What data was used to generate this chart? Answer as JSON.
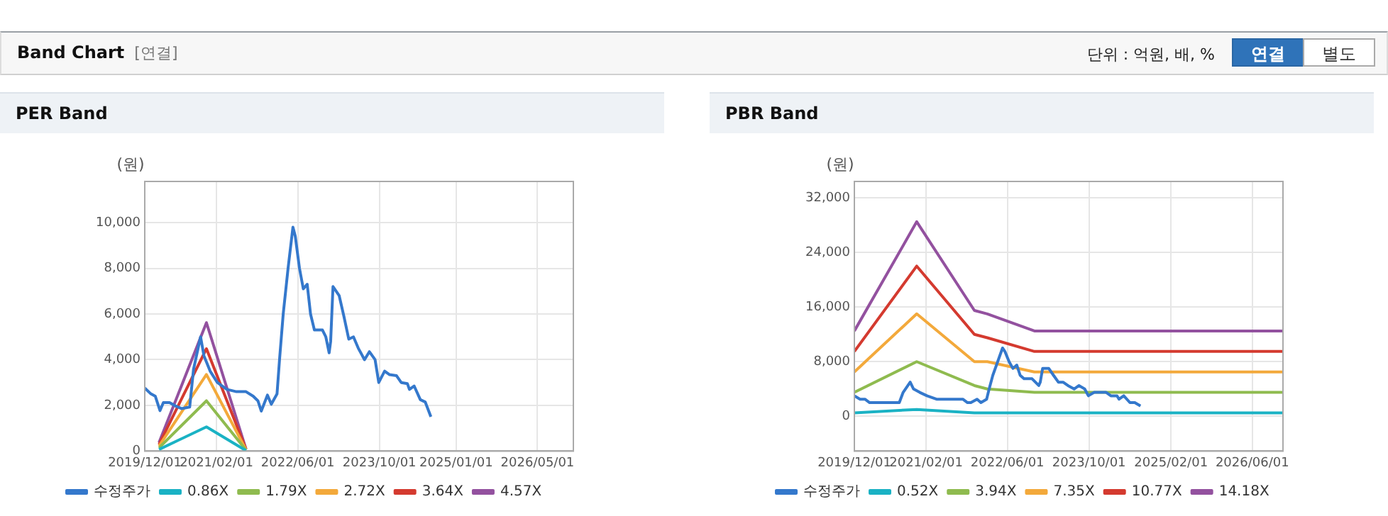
{
  "chart_data": [
    {
      "type": "other",
      "title": "Band Chart",
      "subtitle": "[연결]",
      "annotations": [
        "단위 : 억원, 배, %",
        "연결",
        "별도"
      ]
    },
    {
      "type": "line",
      "title": "PER Band",
      "ylabel": "(원)",
      "x": [
        "2019-12-01",
        "2020-01-04",
        "2020-02-02",
        "2020-03-01",
        "2020-03-21",
        "2020-04-27",
        "2020-05-31",
        "2020-07-07",
        "2020-08-25",
        "2020-09-17",
        "2020-10-29",
        "2020-11-18",
        "2020-12-25",
        "2021-02-06",
        "2021-04-04",
        "2021-05-31",
        "2021-07-27",
        "2021-09-08",
        "2021-10-06",
        "2021-10-26",
        "2021-12-02",
        "2021-12-25",
        "2022-01-28",
        "2022-02-12",
        "2022-03-06",
        "2022-04-04",
        "2022-05-03",
        "2022-05-17",
        "2022-06-11",
        "2022-07-04",
        "2022-07-27",
        "2022-08-16",
        "2022-09-08",
        "2022-10-26",
        "2022-11-15",
        "2022-12-05",
        "2022-12-14",
        "2022-12-28",
        "2023-02-03",
        "2023-03-03",
        "2023-04-01",
        "2023-04-29",
        "2023-05-28",
        "2023-07-04",
        "2023-08-02",
        "2023-09-05",
        "2023-09-27",
        "2023-11-01",
        "2023-11-29",
        "2024-01-11",
        "2024-02-08",
        "2024-03-16",
        "2024-03-28",
        "2024-04-25",
        "2024-06-01",
        "2024-06-30",
        "2024-08-03"
      ],
      "series": [
        {
          "name": "수정주가",
          "color": "#3478cc",
          "values": [
            2760,
            2520,
            2400,
            1770,
            2120,
            2120,
            1980,
            1860,
            1930,
            3580,
            5000,
            4170,
            3500,
            3000,
            2700,
            2600,
            2600,
            2400,
            2200,
            1750,
            2450,
            2050,
            2500,
            4000,
            6000,
            8000,
            9800,
            9400,
            8000,
            7100,
            7300,
            6000,
            5300,
            5300,
            5000,
            4300,
            4800,
            7200,
            6800,
            5900,
            4900,
            5000,
            4500,
            4000,
            4350,
            4000,
            3000,
            3500,
            3350,
            3300,
            3000,
            2950,
            2700,
            2850,
            2250,
            2150,
            1500
          ]
        },
        {
          "name": "0.86X",
          "color": "#1ab2c4",
          "x": [
            "2020-02-24",
            "2020-12-03",
            "2021-07-27"
          ],
          "values": [
            70,
            1060,
            20
          ]
        },
        {
          "name": "1.79X",
          "color": "#8fbb4f",
          "x": [
            "2020-02-24",
            "2020-12-03",
            "2021-07-27"
          ],
          "values": [
            140,
            2200,
            40
          ]
        },
        {
          "name": "2.72X",
          "color": "#f3a93b",
          "x": [
            "2020-02-24",
            "2020-12-03",
            "2021-07-27"
          ],
          "values": [
            220,
            3350,
            60
          ]
        },
        {
          "name": "3.64X",
          "color": "#d43a2f",
          "x": [
            "2020-02-24",
            "2020-12-03",
            "2021-07-27"
          ],
          "values": [
            290,
            4480,
            80
          ]
        },
        {
          "name": "4.57X",
          "color": "#93519f",
          "x": [
            "2020-02-24",
            "2020-12-03",
            "2021-07-27"
          ],
          "values": [
            370,
            5620,
            90
          ]
        }
      ],
      "xlim": [
        "2019-12-01",
        "2026-12-01"
      ],
      "xticks": [
        {
          "value": "2019-12-01",
          "label": "2019/12/01"
        },
        {
          "value": "2021-02-01",
          "label": "2021/02/01"
        },
        {
          "value": "2022-06-01",
          "label": "2022/06/01"
        },
        {
          "value": "2023-10-01",
          "label": "2023/10/01"
        },
        {
          "value": "2025-01-01",
          "label": "2025/01/01"
        },
        {
          "value": "2026-05-01",
          "label": "2026/05/01"
        }
      ],
      "ylim": [
        0,
        11800
      ],
      "yticks": [
        0,
        {
          "value": 2000,
          "label": "2,000"
        },
        {
          "value": 4000,
          "label": "4,000"
        },
        {
          "value": 6000,
          "label": "6,000"
        },
        {
          "value": 8000,
          "label": "8,000"
        },
        {
          "value": 10000,
          "label": "10,000"
        }
      ],
      "grid": true,
      "legend": "bottom",
      "marker": "none",
      "line_style": "solid"
    },
    {
      "type": "line",
      "title": "PBR Band",
      "ylabel": "(원)",
      "x": [
        "2019-12-01",
        "2020-01-04",
        "2020-02-02",
        "2020-03-01",
        "2020-03-21",
        "2020-04-27",
        "2020-05-31",
        "2020-07-07",
        "2020-08-25",
        "2020-09-17",
        "2020-10-29",
        "2020-11-18",
        "2020-12-25",
        "2021-02-06",
        "2021-04-04",
        "2021-05-31",
        "2021-07-27",
        "2021-09-08",
        "2021-10-06",
        "2021-10-26",
        "2021-12-02",
        "2021-12-25",
        "2022-01-28",
        "2022-02-12",
        "2022-03-06",
        "2022-04-04",
        "2022-05-03",
        "2022-05-17",
        "2022-06-11",
        "2022-07-04",
        "2022-07-27",
        "2022-08-16",
        "2022-09-08",
        "2022-10-26",
        "2022-11-15",
        "2022-12-05",
        "2022-12-14",
        "2022-12-28",
        "2023-02-03",
        "2023-03-03",
        "2023-04-01",
        "2023-04-29",
        "2023-05-28",
        "2023-07-04",
        "2023-08-02",
        "2023-09-05",
        "2023-09-27",
        "2023-11-01",
        "2023-11-29",
        "2024-01-11",
        "2024-02-08",
        "2024-03-16",
        "2024-03-28",
        "2024-04-25",
        "2024-06-01",
        "2024-06-30",
        "2024-08-03"
      ],
      "series": [
        {
          "name": "수정주가",
          "color": "#3478cc",
          "values": [
            3000,
            2500,
            2500,
            2000,
            2000,
            2000,
            2000,
            2000,
            2000,
            3500,
            5000,
            4000,
            3500,
            3000,
            2500,
            2500,
            2500,
            2500,
            2000,
            2000,
            2500,
            2000,
            2500,
            4000,
            6000,
            8000,
            10000,
            9500,
            8000,
            7000,
            7500,
            6000,
            5500,
            5500,
            5000,
            4500,
            5000,
            7000,
            7000,
            6000,
            5000,
            5000,
            4500,
            4000,
            4500,
            4000,
            3000,
            3500,
            3500,
            3500,
            3000,
            3000,
            2500,
            3000,
            2000,
            2000,
            1500
          ]
        },
        {
          "name": "0.52X",
          "color": "#1ab2c4",
          "x": [
            "2019-12-01",
            "2020-12-07",
            "2021-11-16",
            "2022-02-01",
            "2022-11-09",
            "2026-12-01"
          ],
          "values": [
            500,
            1000,
            500,
            500,
            500,
            500
          ]
        },
        {
          "name": "3.94X",
          "color": "#8fbb4f",
          "x": [
            "2019-12-01",
            "2020-12-07",
            "2021-11-16",
            "2022-02-01",
            "2022-11-09",
            "2026-12-01"
          ],
          "values": [
            3500,
            8000,
            4500,
            4000,
            3500,
            3500
          ]
        },
        {
          "name": "7.35X",
          "color": "#f3a93b",
          "x": [
            "2019-12-01",
            "2020-12-07",
            "2021-11-16",
            "2022-02-01",
            "2022-11-09",
            "2026-12-01"
          ],
          "values": [
            6500,
            15000,
            8000,
            8000,
            6500,
            6500
          ]
        },
        {
          "name": "10.77X",
          "color": "#d43a2f",
          "x": [
            "2019-12-01",
            "2020-12-07",
            "2021-11-16",
            "2022-02-01",
            "2022-11-09",
            "2026-12-01"
          ],
          "values": [
            9500,
            22000,
            12000,
            11500,
            9500,
            9500
          ]
        },
        {
          "name": "14.18X",
          "color": "#93519f",
          "x": [
            "2019-12-01",
            "2020-12-07",
            "2021-11-16",
            "2022-02-01",
            "2022-11-09",
            "2026-12-01"
          ],
          "values": [
            12500,
            28500,
            15500,
            15000,
            12500,
            12500
          ]
        }
      ],
      "xlim": [
        "2019-12-01",
        "2026-12-01"
      ],
      "xticks": [
        {
          "value": "2019-12-01",
          "label": "2019/12/01"
        },
        {
          "value": "2021-02-01",
          "label": "2021/02/01"
        },
        {
          "value": "2022-06-01",
          "label": "2022/06/01"
        },
        {
          "value": "2023-10-01",
          "label": "2023/10/01"
        },
        {
          "value": "2025-02-01",
          "label": "2025/02/01"
        },
        {
          "value": "2026-06-01",
          "label": "2026/06/01"
        }
      ],
      "ylim": [
        -5100,
        34400
      ],
      "yticks": [
        0,
        {
          "value": 8000,
          "label": "8,000"
        },
        {
          "value": 16000,
          "label": "16,000"
        },
        {
          "value": 24000,
          "label": "24,000"
        },
        {
          "value": 32000,
          "label": "32,000"
        }
      ],
      "grid": true,
      "legend": "bottom",
      "marker": "none",
      "line_style": "solid"
    }
  ]
}
